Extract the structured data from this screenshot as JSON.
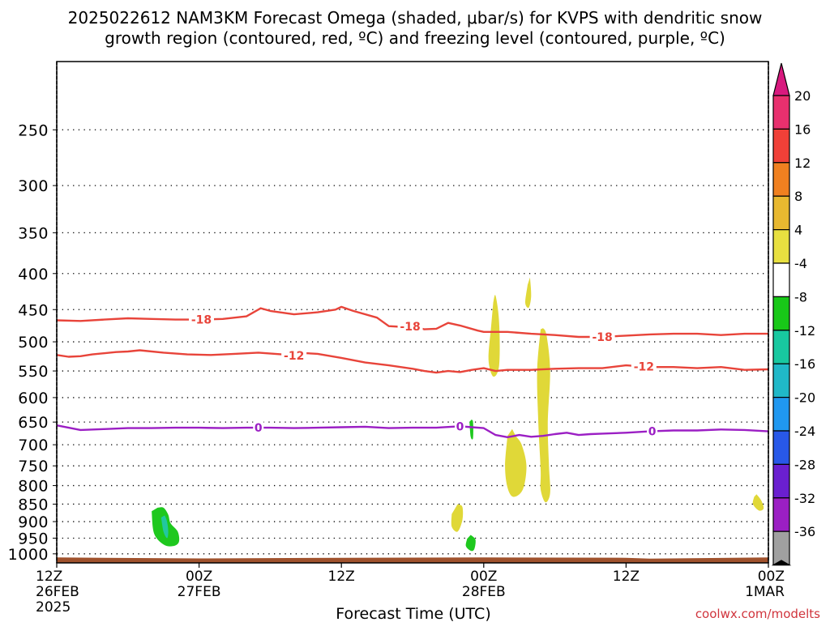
{
  "title_line1": "2025022612 NAM3KM Forecast Omega (shaded, μbar/s) for KVPS with dendritic snow",
  "title_line2": "growth region (contoured, red, ºC) and freezing level (contoured, purple, ºC)",
  "xlabel": "Forecast Time (UTC)",
  "watermark": "coolwx.com/modelts",
  "colors": {
    "dgz": "#e8443a",
    "freezing": "#9b1fc4",
    "ground": "#a0522d",
    "positive_omega": "#e0d838",
    "negative_omega": "#1ec81e",
    "negative_omega_strong": "#22c7a0",
    "watermark": "#d0343c"
  },
  "chart_data": {
    "type": "area",
    "title": "2025022612 NAM3KM Forecast Omega (shaded, μbar/s) for KVPS with dendritic snow growth region (contoured, red, ºC) and freezing level (contoured, purple, ºC)",
    "xlabel": "Forecast Time (UTC)",
    "ylabel": "",
    "x_unit": "forecast hour from 2025-02-26 12Z",
    "xlim": [
      0,
      60
    ],
    "y_scale": "log",
    "ylim": [
      1030,
      200
    ],
    "y_ticks": [
      250,
      300,
      350,
      400,
      450,
      500,
      550,
      600,
      650,
      700,
      750,
      800,
      850,
      900,
      950,
      1000
    ],
    "grid": true,
    "x_ticks": [
      {
        "hour": 0,
        "labels": [
          "12Z",
          "26FEB",
          "2025"
        ]
      },
      {
        "hour": 12,
        "labels": [
          "00Z",
          "27FEB"
        ]
      },
      {
        "hour": 24,
        "labels": [
          "12Z"
        ]
      },
      {
        "hour": 36,
        "labels": [
          "00Z",
          "28FEB"
        ]
      },
      {
        "hour": 48,
        "labels": [
          "12Z"
        ]
      },
      {
        "hour": 60,
        "labels": [
          "00Z",
          "1MAR"
        ]
      }
    ],
    "contours": [
      {
        "label": "-18",
        "color": "#e8443a",
        "label_at": [
          [
            12.2,
            "-18"
          ],
          [
            29.8,
            "-18"
          ],
          [
            46.0,
            "-18"
          ]
        ],
        "points": [
          [
            0,
            466
          ],
          [
            2,
            467
          ],
          [
            4,
            465
          ],
          [
            6,
            463
          ],
          [
            8,
            464
          ],
          [
            10,
            465
          ],
          [
            12,
            465
          ],
          [
            14,
            464
          ],
          [
            16,
            460
          ],
          [
            17.2,
            448
          ],
          [
            18,
            452
          ],
          [
            20,
            457
          ],
          [
            22,
            454
          ],
          [
            23.5,
            450
          ],
          [
            24,
            446
          ],
          [
            25,
            452
          ],
          [
            27,
            462
          ],
          [
            28,
            475
          ],
          [
            29,
            476
          ],
          [
            30,
            475
          ],
          [
            31,
            480
          ],
          [
            32,
            479
          ],
          [
            33,
            470
          ],
          [
            34,
            474
          ],
          [
            35.5,
            482
          ],
          [
            36,
            484
          ],
          [
            38,
            484
          ],
          [
            40,
            487
          ],
          [
            42,
            489
          ],
          [
            44,
            492
          ],
          [
            46,
            492
          ],
          [
            48,
            490
          ],
          [
            50,
            488
          ],
          [
            52,
            487
          ],
          [
            54,
            487
          ],
          [
            56,
            489
          ],
          [
            58,
            487
          ],
          [
            60,
            487
          ]
        ]
      },
      {
        "label": "-12",
        "color": "#e8443a",
        "label_at": [
          [
            20.0,
            "-12"
          ],
          [
            49.5,
            "-12"
          ]
        ],
        "points": [
          [
            0,
            522
          ],
          [
            1,
            525
          ],
          [
            2,
            524
          ],
          [
            3,
            521
          ],
          [
            5,
            517
          ],
          [
            6,
            516
          ],
          [
            7,
            514
          ],
          [
            9,
            518
          ],
          [
            11,
            521
          ],
          [
            13,
            522
          ],
          [
            15,
            520
          ],
          [
            17,
            518
          ],
          [
            19,
            521
          ],
          [
            20,
            523
          ],
          [
            21,
            519
          ],
          [
            22,
            520
          ],
          [
            24,
            527
          ],
          [
            26,
            535
          ],
          [
            28,
            540
          ],
          [
            30,
            546
          ],
          [
            31,
            550
          ],
          [
            32,
            553
          ],
          [
            33,
            550
          ],
          [
            34,
            552
          ],
          [
            35,
            548
          ],
          [
            36,
            545
          ],
          [
            37,
            550
          ],
          [
            38,
            548
          ],
          [
            40,
            548
          ],
          [
            42,
            546
          ],
          [
            44,
            545
          ],
          [
            46,
            545
          ],
          [
            48,
            540
          ],
          [
            50,
            543
          ],
          [
            52,
            543
          ],
          [
            54,
            545
          ],
          [
            56,
            543
          ],
          [
            58,
            548
          ],
          [
            60,
            547
          ]
        ]
      },
      {
        "label": "0",
        "color": "#9b1fc4",
        "label_at": [
          [
            17.0,
            "0"
          ],
          [
            34.0,
            "0"
          ],
          [
            50.2,
            "0"
          ]
        ],
        "points": [
          [
            0,
            657
          ],
          [
            2,
            667
          ],
          [
            4,
            665
          ],
          [
            6,
            663
          ],
          [
            8,
            663
          ],
          [
            10,
            662
          ],
          [
            12,
            662
          ],
          [
            14,
            663
          ],
          [
            16,
            662
          ],
          [
            18,
            662
          ],
          [
            20,
            663
          ],
          [
            22,
            662
          ],
          [
            24,
            661
          ],
          [
            26,
            660
          ],
          [
            28,
            663
          ],
          [
            30,
            662
          ],
          [
            32,
            662
          ],
          [
            34,
            659
          ],
          [
            35,
            661
          ],
          [
            36,
            663
          ],
          [
            37,
            678
          ],
          [
            38,
            683
          ],
          [
            39,
            678
          ],
          [
            40,
            682
          ],
          [
            41,
            680
          ],
          [
            42,
            676
          ],
          [
            43,
            673
          ],
          [
            44,
            678
          ],
          [
            45,
            676
          ],
          [
            46,
            675
          ],
          [
            48,
            673
          ],
          [
            50,
            670
          ],
          [
            52,
            668
          ],
          [
            54,
            668
          ],
          [
            56,
            666
          ],
          [
            58,
            667
          ],
          [
            60,
            670
          ]
        ]
      }
    ],
    "shaded_regions": [
      {
        "kind": "negative",
        "color": "#1ec81e",
        "points": [
          [
            8.0,
            870
          ],
          [
            8.2,
            935
          ],
          [
            9.0,
            970
          ],
          [
            9.8,
            975
          ],
          [
            10.3,
            962
          ],
          [
            10.2,
            930
          ],
          [
            9.6,
            905
          ],
          [
            9.4,
            880
          ],
          [
            9.0,
            860
          ],
          [
            8.5,
            860
          ]
        ]
      },
      {
        "kind": "negative",
        "color": "#22c7a0",
        "points": [
          [
            8.8,
            888
          ],
          [
            9.0,
            930
          ],
          [
            9.3,
            950
          ],
          [
            9.4,
            930
          ],
          [
            9.3,
            900
          ],
          [
            9.1,
            882
          ]
        ]
      },
      {
        "kind": "negative",
        "color": "#1ec81e",
        "points": [
          [
            34.6,
            952
          ],
          [
            34.5,
            975
          ],
          [
            34.9,
            990
          ],
          [
            35.2,
            985
          ],
          [
            35.3,
            955
          ],
          [
            34.9,
            940
          ]
        ]
      },
      {
        "kind": "negative",
        "color": "#1ec81e",
        "points": [
          [
            34.8,
            650
          ],
          [
            34.9,
            682
          ],
          [
            35.1,
            685
          ],
          [
            35.1,
            650
          ],
          [
            34.95,
            645
          ]
        ]
      },
      {
        "kind": "positive",
        "color": "#e0d838",
        "points": [
          [
            33.3,
            878
          ],
          [
            33.3,
            915
          ],
          [
            33.8,
            930
          ],
          [
            34.2,
            895
          ],
          [
            34.2,
            858
          ],
          [
            33.8,
            850
          ]
        ]
      },
      {
        "kind": "positive",
        "color": "#e0d838",
        "points": [
          [
            36.6,
            480
          ],
          [
            36.4,
            530
          ],
          [
            36.8,
            560
          ],
          [
            37.3,
            540
          ],
          [
            37.3,
            470
          ],
          [
            37.0,
            430
          ],
          [
            36.8,
            440
          ]
        ]
      },
      {
        "kind": "positive",
        "color": "#e0d838",
        "points": [
          [
            39.7,
            415
          ],
          [
            39.5,
            440
          ],
          [
            39.8,
            447
          ],
          [
            40.0,
            430
          ],
          [
            39.9,
            405
          ]
        ]
      },
      {
        "kind": "positive",
        "color": "#e0d838",
        "points": [
          [
            38.0,
            680
          ],
          [
            37.8,
            750
          ],
          [
            38.0,
            805
          ],
          [
            38.5,
            830
          ],
          [
            39.3,
            810
          ],
          [
            39.6,
            750
          ],
          [
            39.2,
            700
          ],
          [
            38.7,
            680
          ],
          [
            38.4,
            665
          ]
        ]
      },
      {
        "kind": "positive",
        "color": "#e0d838",
        "points": [
          [
            40.8,
            480
          ],
          [
            40.5,
            550
          ],
          [
            40.6,
            650
          ],
          [
            40.8,
            760
          ],
          [
            40.8,
            810
          ],
          [
            41.2,
            845
          ],
          [
            41.6,
            820
          ],
          [
            41.5,
            750
          ],
          [
            41.4,
            650
          ],
          [
            41.6,
            550
          ],
          [
            41.3,
            490
          ],
          [
            41.0,
            478
          ]
        ]
      },
      {
        "kind": "positive",
        "color": "#e0d838",
        "points": [
          [
            58.8,
            830
          ],
          [
            58.7,
            850
          ],
          [
            59.2,
            868
          ],
          [
            59.6,
            862
          ],
          [
            59.4,
            840
          ],
          [
            59.0,
            823
          ]
        ]
      }
    ],
    "ground": {
      "color": "#a0522d",
      "top_pressure": [
        [
          0,
          1012
        ],
        [
          12,
          1015
        ],
        [
          24,
          1013
        ],
        [
          36,
          1012
        ],
        [
          48,
          1013
        ],
        [
          50,
          1016
        ],
        [
          60,
          1012
        ]
      ]
    },
    "colorbar": {
      "labels": [
        "20",
        "16",
        "12",
        "8",
        "4",
        "-4",
        "-8",
        "-12",
        "-16",
        "-20",
        "-24",
        "-28",
        "-32",
        "-36"
      ],
      "colors": [
        "#e8306e",
        "#f04038",
        "#f08020",
        "#e8b830",
        "#e8e040",
        "#ffffff",
        "#18c818",
        "#18c8a0",
        "#20b8c8",
        "#2098f0",
        "#2858e8",
        "#6a1fd0",
        "#9b1fc4",
        "#a0a0a0"
      ],
      "top_color": "#d8197e",
      "bottom_color": "#000000"
    }
  }
}
